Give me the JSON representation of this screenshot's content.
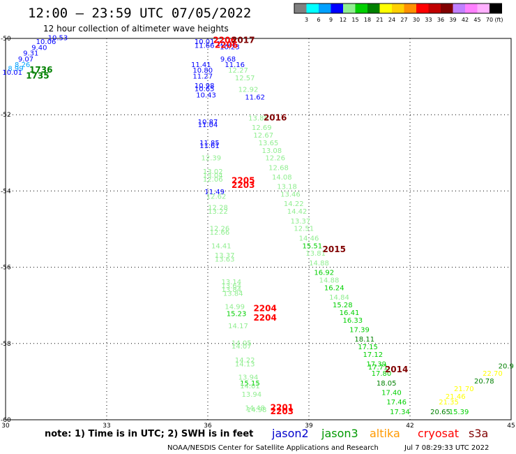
{
  "header": {
    "title": "12:00 – 23:59 UTC 07/05/2022",
    "subtitle": "12 hour collection of altimeter wave heights"
  },
  "colorbar": {
    "unit": "(ft)",
    "segments": [
      {
        "color": "#808080",
        "label": "3"
      },
      {
        "color": "#00ffff",
        "label": "6"
      },
      {
        "color": "#00a0ff",
        "label": "9"
      },
      {
        "color": "#0000ff",
        "label": "12"
      },
      {
        "color": "#90ee90",
        "label": "15"
      },
      {
        "color": "#00d000",
        "label": "18"
      },
      {
        "color": "#008000",
        "label": "21"
      },
      {
        "color": "#ffff00",
        "label": "24"
      },
      {
        "color": "#ffd000",
        "label": "27"
      },
      {
        "color": "#ff9000",
        "label": "30"
      },
      {
        "color": "#ff0000",
        "label": "33"
      },
      {
        "color": "#c00000",
        "label": "36"
      },
      {
        "color": "#800000",
        "label": "39"
      },
      {
        "color": "#c080ff",
        "label": "42"
      },
      {
        "color": "#ff80ff",
        "label": "45"
      },
      {
        "color": "#ffb0ff",
        "label": "70"
      },
      {
        "color": "#000000",
        "label": ""
      }
    ]
  },
  "chart_data": {
    "type": "scatter",
    "xlim": [
      30,
      45
    ],
    "ylim": [
      -60,
      -50
    ],
    "xticks": [
      "30",
      "33",
      "36",
      "39",
      "42",
      "45"
    ],
    "yticks": [
      "-50",
      "-52",
      "-54",
      "-56",
      "-58",
      "-60"
    ],
    "grid": true,
    "points": [
      {
        "x": 31.55,
        "y": -50.05,
        "v": "10.53",
        "c": "#0000ff"
      },
      {
        "x": 31.2,
        "y": -50.15,
        "v": "10.06",
        "c": "#0000ff"
      },
      {
        "x": 31.0,
        "y": -50.3,
        "v": "9.40",
        "c": "#0000ff"
      },
      {
        "x": 30.75,
        "y": -50.45,
        "v": "9.31",
        "c": "#0000ff"
      },
      {
        "x": 30.6,
        "y": -50.6,
        "v": "9.07",
        "c": "#0000ff"
      },
      {
        "x": 30.5,
        "y": -50.75,
        "v": "8.26",
        "c": "#00a0ff"
      },
      {
        "x": 30.3,
        "y": -50.85,
        "v": "8.99",
        "c": "#00a0ff"
      },
      {
        "x": 30.2,
        "y": -50.95,
        "v": "10.01",
        "c": "#0000ff"
      },
      {
        "x": 35.9,
        "y": -50.15,
        "v": "10.01",
        "c": "#0000ff"
      },
      {
        "x": 35.9,
        "y": -50.25,
        "v": "11.66",
        "c": "#0000ff"
      },
      {
        "x": 36.55,
        "y": -50.2,
        "v": "10.22",
        "c": "#0000ff"
      },
      {
        "x": 36.65,
        "y": -50.28,
        "v": "10.23",
        "c": "#0000ff"
      },
      {
        "x": 36.6,
        "y": -50.6,
        "v": "9.68",
        "c": "#0000ff"
      },
      {
        "x": 35.8,
        "y": -50.75,
        "v": "11.41",
        "c": "#0000ff"
      },
      {
        "x": 36.8,
        "y": -50.75,
        "v": "11.16",
        "c": "#0000ff"
      },
      {
        "x": 35.85,
        "y": -50.9,
        "v": "10.80",
        "c": "#0000ff"
      },
      {
        "x": 36.9,
        "y": -50.9,
        "v": "12.27",
        "c": "#90ee90"
      },
      {
        "x": 35.85,
        "y": -51.05,
        "v": "11.27",
        "c": "#0000ff"
      },
      {
        "x": 37.1,
        "y": -51.1,
        "v": "12.57",
        "c": "#90ee90"
      },
      {
        "x": 35.9,
        "y": -51.3,
        "v": "10.98",
        "c": "#0000ff"
      },
      {
        "x": 35.9,
        "y": -51.38,
        "v": "10.65",
        "c": "#0000ff"
      },
      {
        "x": 37.2,
        "y": -51.4,
        "v": "12.92",
        "c": "#90ee90"
      },
      {
        "x": 35.95,
        "y": -51.55,
        "v": "10.43",
        "c": "#0000ff"
      },
      {
        "x": 37.4,
        "y": -51.6,
        "v": "11.62",
        "c": "#0000ff"
      },
      {
        "x": 37.5,
        "y": -52.15,
        "v": "13.88",
        "c": "#90ee90"
      },
      {
        "x": 36.0,
        "y": -52.25,
        "v": "10.87",
        "c": "#0000ff"
      },
      {
        "x": 36.0,
        "y": -52.33,
        "v": "11.04",
        "c": "#0000ff"
      },
      {
        "x": 37.6,
        "y": -52.4,
        "v": "12.69",
        "c": "#90ee90"
      },
      {
        "x": 37.65,
        "y": -52.6,
        "v": "12.67",
        "c": "#90ee90"
      },
      {
        "x": 36.05,
        "y": -52.8,
        "v": "11.85",
        "c": "#0000ff"
      },
      {
        "x": 37.8,
        "y": -52.8,
        "v": "13.65",
        "c": "#90ee90"
      },
      {
        "x": 36.05,
        "y": -52.88,
        "v": "11.61",
        "c": "#0000ff"
      },
      {
        "x": 37.9,
        "y": -53.0,
        "v": "13.08",
        "c": "#90ee90"
      },
      {
        "x": 36.1,
        "y": -53.2,
        "v": "12.39",
        "c": "#90ee90"
      },
      {
        "x": 38.0,
        "y": -53.2,
        "v": "12.26",
        "c": "#90ee90"
      },
      {
        "x": 38.1,
        "y": -53.45,
        "v": "12.68",
        "c": "#90ee90"
      },
      {
        "x": 36.15,
        "y": -53.55,
        "v": "13.02",
        "c": "#90ee90"
      },
      {
        "x": 36.15,
        "y": -53.65,
        "v": "13.04",
        "c": "#90ee90"
      },
      {
        "x": 38.2,
        "y": -53.7,
        "v": "14.08",
        "c": "#90ee90"
      },
      {
        "x": 36.15,
        "y": -53.75,
        "v": "12.06",
        "c": "#90ee90"
      },
      {
        "x": 38.35,
        "y": -53.95,
        "v": "13.18",
        "c": "#90ee90"
      },
      {
        "x": 36.2,
        "y": -54.08,
        "v": "11.49",
        "c": "#0000ff"
      },
      {
        "x": 36.25,
        "y": -54.2,
        "v": "12.62",
        "c": "#90ee90"
      },
      {
        "x": 38.45,
        "y": -54.15,
        "v": "13.46",
        "c": "#90ee90"
      },
      {
        "x": 38.55,
        "y": -54.4,
        "v": "14.22",
        "c": "#90ee90"
      },
      {
        "x": 36.3,
        "y": -54.5,
        "v": "12.28",
        "c": "#90ee90"
      },
      {
        "x": 38.65,
        "y": -54.6,
        "v": "14.42",
        "c": "#90ee90"
      },
      {
        "x": 36.3,
        "y": -54.6,
        "v": "13.22",
        "c": "#90ee90"
      },
      {
        "x": 38.75,
        "y": -54.85,
        "v": "13.37",
        "c": "#90ee90"
      },
      {
        "x": 36.35,
        "y": -55.05,
        "v": "12.26",
        "c": "#90ee90"
      },
      {
        "x": 38.85,
        "y": -55.05,
        "v": "12.51",
        "c": "#90ee90"
      },
      {
        "x": 36.35,
        "y": -55.15,
        "v": "12.66",
        "c": "#90ee90"
      },
      {
        "x": 39.0,
        "y": -55.3,
        "v": "14.46",
        "c": "#90ee90"
      },
      {
        "x": 36.4,
        "y": -55.5,
        "v": "14.41",
        "c": "#90ee90"
      },
      {
        "x": 39.1,
        "y": -55.5,
        "v": "15.51",
        "c": "#00d000"
      },
      {
        "x": 36.5,
        "y": -55.75,
        "v": "13.37",
        "c": "#90ee90"
      },
      {
        "x": 39.2,
        "y": -55.7,
        "v": "13.81",
        "c": "#90ee90"
      },
      {
        "x": 36.5,
        "y": -55.85,
        "v": "13.63",
        "c": "#90ee90"
      },
      {
        "x": 39.3,
        "y": -55.95,
        "v": "14.88",
        "c": "#90ee90"
      },
      {
        "x": 39.45,
        "y": -56.2,
        "v": "16.92",
        "c": "#00d000"
      },
      {
        "x": 39.6,
        "y": -56.4,
        "v": "14.88",
        "c": "#90ee90"
      },
      {
        "x": 36.7,
        "y": -56.45,
        "v": "13.14",
        "c": "#90ee90"
      },
      {
        "x": 36.7,
        "y": -56.55,
        "v": "13.64",
        "c": "#90ee90"
      },
      {
        "x": 39.75,
        "y": -56.6,
        "v": "16.24",
        "c": "#00d000"
      },
      {
        "x": 36.7,
        "y": -56.65,
        "v": "13.84",
        "c": "#90ee90"
      },
      {
        "x": 36.75,
        "y": -56.75,
        "v": "13.84",
        "c": "#90ee90"
      },
      {
        "x": 39.9,
        "y": -56.85,
        "v": "14.84",
        "c": "#90ee90"
      },
      {
        "x": 40.0,
        "y": -57.05,
        "v": "15.28",
        "c": "#00d000"
      },
      {
        "x": 36.8,
        "y": -57.1,
        "v": "14.99",
        "c": "#90ee90"
      },
      {
        "x": 40.2,
        "y": -57.25,
        "v": "16.41",
        "c": "#00d000"
      },
      {
        "x": 36.85,
        "y": -57.28,
        "v": "15.23",
        "c": "#00d000"
      },
      {
        "x": 40.3,
        "y": -57.45,
        "v": "16.33",
        "c": "#00d000"
      },
      {
        "x": 36.9,
        "y": -57.6,
        "v": "14.17",
        "c": "#90ee90"
      },
      {
        "x": 40.5,
        "y": -57.7,
        "v": "17.39",
        "c": "#00d000"
      },
      {
        "x": 40.65,
        "y": -57.95,
        "v": "18.11",
        "c": "#008000"
      },
      {
        "x": 37.0,
        "y": -58.05,
        "v": "14.05",
        "c": "#90ee90"
      },
      {
        "x": 37.0,
        "y": -58.13,
        "v": "14.07",
        "c": "#90ee90"
      },
      {
        "x": 40.75,
        "y": -58.15,
        "v": "17.15",
        "c": "#00d000"
      },
      {
        "x": 40.9,
        "y": -58.35,
        "v": "17.12",
        "c": "#00d000"
      },
      {
        "x": 37.1,
        "y": -58.5,
        "v": "14.22",
        "c": "#90ee90"
      },
      {
        "x": 41.0,
        "y": -58.6,
        "v": "17.39",
        "c": "#00d000"
      },
      {
        "x": 37.1,
        "y": -58.6,
        "v": "14.13",
        "c": "#90ee90"
      },
      {
        "x": 41.05,
        "y": -58.68,
        "v": "17.71",
        "c": "#00d000"
      },
      {
        "x": 41.15,
        "y": -58.85,
        "v": "17.80",
        "c": "#00d000"
      },
      {
        "x": 37.2,
        "y": -58.95,
        "v": "13.94",
        "c": "#90ee90"
      },
      {
        "x": 41.3,
        "y": -59.1,
        "v": "18.05",
        "c": "#008000"
      },
      {
        "x": 37.25,
        "y": -59.1,
        "v": "15.15",
        "c": "#00d000"
      },
      {
        "x": 37.25,
        "y": -59.18,
        "v": "14.01",
        "c": "#90ee90"
      },
      {
        "x": 41.45,
        "y": -59.35,
        "v": "17.40",
        "c": "#00d000"
      },
      {
        "x": 37.3,
        "y": -59.4,
        "v": "13.94",
        "c": "#90ee90"
      },
      {
        "x": 41.6,
        "y": -59.6,
        "v": "17.46",
        "c": "#00d000"
      },
      {
        "x": 37.4,
        "y": -59.75,
        "v": "14.48",
        "c": "#90ee90"
      },
      {
        "x": 37.45,
        "y": -59.8,
        "v": "14.98",
        "c": "#90ee90"
      },
      {
        "x": 41.7,
        "y": -59.85,
        "v": "17.34",
        "c": "#00d000"
      },
      {
        "x": 42.9,
        "y": -59.85,
        "v": "20.65",
        "c": "#008000"
      },
      {
        "x": 43.45,
        "y": -59.85,
        "v": "15.39",
        "c": "#00d000"
      },
      {
        "x": 43.15,
        "y": -59.6,
        "v": "21.35",
        "c": "#ffff00"
      },
      {
        "x": 43.35,
        "y": -59.45,
        "v": "21.46",
        "c": "#ffff00"
      },
      {
        "x": 43.6,
        "y": -59.25,
        "v": "21.70",
        "c": "#ffff00"
      },
      {
        "x": 44.2,
        "y": -59.05,
        "v": "20.78",
        "c": "#008000"
      },
      {
        "x": 44.45,
        "y": -58.85,
        "v": "22.70",
        "c": "#ffff00"
      },
      {
        "x": 44.85,
        "y": -58.65,
        "v": "20.9",
        "c": "#008000"
      }
    ],
    "pass_labels": [
      {
        "x": 31.05,
        "y": -50.9,
        "v": "1736",
        "c": "#008000"
      },
      {
        "x": 30.95,
        "y": -51.05,
        "v": "1735",
        "c": "#008000"
      },
      {
        "x": 36.5,
        "y": -50.12,
        "v": "2206",
        "c": "#ff0000"
      },
      {
        "x": 37.05,
        "y": -50.12,
        "v": "2017",
        "c": "#800000"
      },
      {
        "x": 36.55,
        "y": -50.25,
        "v": "2206",
        "c": "#ff0000"
      },
      {
        "x": 38.0,
        "y": -52.15,
        "v": "2016",
        "c": "#800000"
      },
      {
        "x": 37.05,
        "y": -53.8,
        "v": "2205",
        "c": "#ff0000"
      },
      {
        "x": 37.05,
        "y": -53.92,
        "v": "2203",
        "c": "#ff0000"
      },
      {
        "x": 39.75,
        "y": -55.6,
        "v": "2015",
        "c": "#800000"
      },
      {
        "x": 37.7,
        "y": -57.15,
        "v": "2204",
        "c": "#ff0000"
      },
      {
        "x": 37.7,
        "y": -57.4,
        "v": "2204",
        "c": "#ff0000"
      },
      {
        "x": 41.6,
        "y": -58.75,
        "v": "2014",
        "c": "#800000"
      },
      {
        "x": 38.2,
        "y": -59.75,
        "v": "2201",
        "c": "#ff0000"
      },
      {
        "x": 38.2,
        "y": -59.85,
        "v": "2203",
        "c": "#ff0000"
      }
    ]
  },
  "legend": {
    "note": "note: 1) Time is in UTC; 2) SWH is in feet",
    "satellites": [
      {
        "name": "jason2",
        "color": "#0000cc"
      },
      {
        "name": "jason3",
        "color": "#009900"
      },
      {
        "name": "altika",
        "color": "#ff9900"
      },
      {
        "name": "cryosat",
        "color": "#ff0000"
      },
      {
        "name": "s3a",
        "color": "#800000"
      }
    ]
  },
  "footer": {
    "credit": "NOAA/NESDIS Center for Satellite Applications and Research",
    "timestamp": "Jul  7 08:29:33 UTC 2022"
  }
}
